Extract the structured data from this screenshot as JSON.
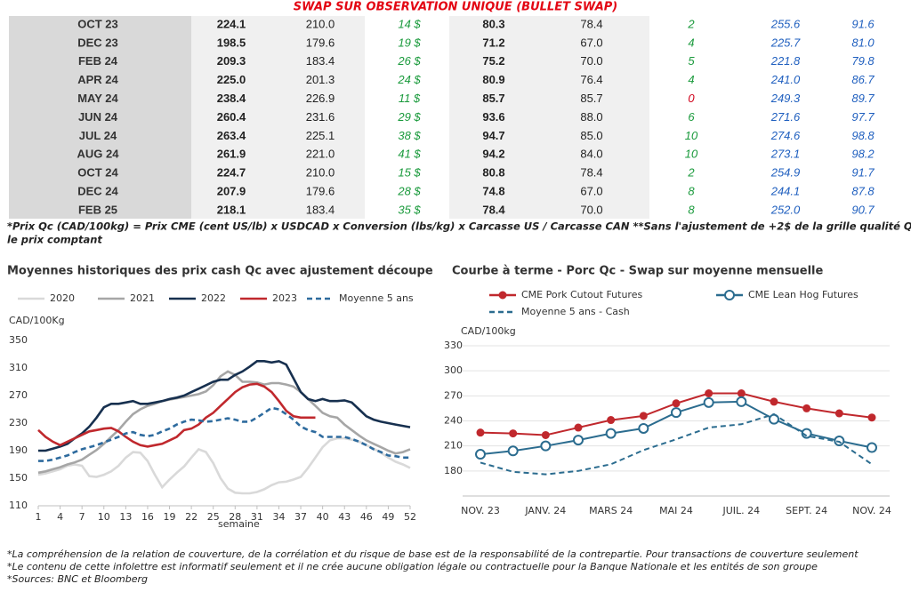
{
  "table": {
    "title": "SWAP SUR OBSERVATION UNIQUE (BULLET SWAP)",
    "rows": [
      [
        "OCT 23",
        "224.1",
        "210.0",
        "14 $",
        "80.3",
        "78.4",
        "2",
        "255.6",
        "91.6"
      ],
      [
        "DEC 23",
        "198.5",
        "179.6",
        "19 $",
        "71.2",
        "67.0",
        "4",
        "225.7",
        "81.0"
      ],
      [
        "FEB 24",
        "209.3",
        "183.4",
        "26 $",
        "75.2",
        "70.0",
        "5",
        "221.8",
        "79.8"
      ],
      [
        "APR 24",
        "225.0",
        "201.3",
        "24 $",
        "80.9",
        "76.4",
        "4",
        "241.0",
        "86.7"
      ],
      [
        "MAY 24",
        "238.4",
        "226.9",
        "11 $",
        "85.7",
        "85.7",
        "0",
        "249.3",
        "89.7"
      ],
      [
        "JUN 24",
        "260.4",
        "231.6",
        "29 $",
        "93.6",
        "88.0",
        "6",
        "271.6",
        "97.7"
      ],
      [
        "JUL 24",
        "263.4",
        "225.1",
        "38 $",
        "94.7",
        "85.0",
        "10",
        "274.6",
        "98.8"
      ],
      [
        "AUG 24",
        "261.9",
        "221.0",
        "41 $",
        "94.2",
        "84.0",
        "10",
        "273.1",
        "98.2"
      ],
      [
        "OCT 24",
        "224.7",
        "210.0",
        "15 $",
        "80.8",
        "78.4",
        "2",
        "254.9",
        "91.7"
      ],
      [
        "DEC 24",
        "207.9",
        "179.6",
        "28 $",
        "74.8",
        "67.0",
        "8",
        "244.1",
        "87.8"
      ],
      [
        "FEB 25",
        "218.1",
        "183.4",
        "35 $",
        "78.4",
        "70.0",
        "8",
        "252.0",
        "90.7"
      ]
    ],
    "note": [
      "*Prix Qc (CAD/100kg) = Prix CME (cent US/lb) x USDCAD x Conversion (lbs/kg) x Carcasse US / Carcasse CAN **Sans l'ajustement de +2$ de la grille qualité Québec pour",
      "le prix comptant"
    ]
  },
  "chart_data": [
    {
      "type": "line",
      "title": "Moyennes historiques des prix cash Qc avec ajustement découpe",
      "ylabel": "CAD/100Kg",
      "xlabel": "semaine",
      "x": [
        1,
        2,
        3,
        4,
        5,
        6,
        7,
        8,
        9,
        10,
        11,
        12,
        13,
        14,
        15,
        16,
        17,
        18,
        19,
        20,
        21,
        22,
        23,
        24,
        25,
        26,
        27,
        28,
        29,
        30,
        31,
        32,
        33,
        34,
        35,
        36,
        37,
        38,
        39,
        40,
        41,
        42,
        43,
        44,
        45,
        46,
        47,
        48,
        49,
        50,
        51,
        52
      ],
      "xlim": [
        1,
        52
      ],
      "xticks": [
        1,
        4,
        7,
        10,
        13,
        16,
        19,
        22,
        25,
        28,
        31,
        34,
        37,
        40,
        43,
        46,
        49,
        52
      ],
      "ylim": [
        110,
        350
      ],
      "yticks": [
        110,
        150,
        190,
        230,
        270,
        310,
        350
      ],
      "grid": false,
      "series": [
        {
          "name": "2020",
          "color": "#d9d9d9",
          "style": "solid",
          "values": [
            155,
            157,
            160,
            163,
            168,
            170,
            168,
            153,
            152,
            155,
            160,
            168,
            180,
            188,
            187,
            175,
            155,
            137,
            148,
            158,
            167,
            180,
            192,
            188,
            172,
            150,
            135,
            129,
            128,
            128,
            130,
            134,
            140,
            144,
            145,
            148,
            152,
            165,
            180,
            195,
            205,
            208,
            208,
            206,
            203,
            198,
            193,
            187,
            180,
            174,
            170,
            165
          ]
        },
        {
          "name": "2021",
          "color": "#a6a6a6",
          "style": "solid",
          "values": [
            158,
            160,
            163,
            166,
            170,
            173,
            177,
            184,
            191,
            200,
            210,
            220,
            232,
            243,
            250,
            255,
            258,
            262,
            264,
            266,
            268,
            270,
            272,
            276,
            285,
            298,
            305,
            300,
            290,
            290,
            289,
            286,
            288,
            288,
            286,
            283,
            275,
            265,
            255,
            245,
            240,
            238,
            228,
            220,
            212,
            205,
            200,
            195,
            190,
            186,
            188,
            192
          ]
        },
        {
          "name": "2022",
          "color": "#17304f",
          "style": "solid",
          "values": [
            190,
            190,
            193,
            196,
            200,
            208,
            215,
            225,
            238,
            253,
            258,
            258,
            260,
            262,
            258,
            258,
            260,
            262,
            265,
            267,
            270,
            275,
            280,
            285,
            290,
            293,
            293,
            300,
            305,
            312,
            320,
            320,
            318,
            320,
            315,
            295,
            275,
            265,
            262,
            265,
            262,
            262,
            263,
            260,
            250,
            240,
            235,
            232,
            230,
            228,
            226,
            224
          ]
        },
        {
          "name": "2023",
          "color": "#c0282d",
          "style": "solid",
          "values": [
            220,
            210,
            203,
            198,
            203,
            208,
            213,
            218,
            220,
            222,
            223,
            218,
            210,
            203,
            198,
            196,
            198,
            200,
            205,
            210,
            220,
            222,
            228,
            238,
            245,
            255,
            265,
            275,
            282,
            286,
            287,
            283,
            275,
            262,
            248,
            240,
            238,
            238,
            238,
            null,
            null,
            null,
            null,
            null,
            null,
            null,
            null,
            null,
            null,
            null,
            null,
            null
          ]
        },
        {
          "name": "Moyenne 5 ans",
          "color": "#2e6b9e",
          "style": "dashed",
          "values": [
            175,
            175,
            177,
            180,
            183,
            188,
            192,
            195,
            198,
            202,
            206,
            210,
            215,
            217,
            213,
            211,
            213,
            218,
            222,
            228,
            232,
            235,
            234,
            232,
            233,
            235,
            237,
            235,
            232,
            232,
            238,
            245,
            252,
            250,
            243,
            235,
            225,
            220,
            217,
            210,
            210,
            210,
            210,
            207,
            203,
            198,
            192,
            188,
            183,
            182,
            180,
            180
          ]
        }
      ]
    },
    {
      "type": "line",
      "title": "Courbe à terme - Porc Qc - Swap sur moyenne mensuelle",
      "ylabel": "CAD/100kg",
      "categories": [
        "NOV. 23",
        null,
        "JANV. 24",
        null,
        "MARS 24",
        null,
        "MAI 24",
        null,
        "JUIL. 24",
        null,
        "SEPT. 24",
        null,
        "NOV. 24"
      ],
      "ylim": [
        150,
        330
      ],
      "yticks": [
        180,
        210,
        240,
        270,
        300,
        330
      ],
      "grid": true,
      "series": [
        {
          "name": "CME Pork Cutout Futures",
          "color": "#c0282d",
          "style": "solid",
          "marker": "filled-circle",
          "values": [
            226,
            225,
            223,
            232,
            241,
            246,
            261,
            273,
            273,
            263,
            255,
            249,
            244
          ]
        },
        {
          "name": "CME Lean Hog Futures",
          "color": "#2b6c8f",
          "style": "solid",
          "marker": "open-circle",
          "values": [
            200,
            204,
            210,
            217,
            225,
            231,
            250,
            262,
            263,
            242,
            225,
            216,
            208
          ]
        },
        {
          "name": "Moyenne 5 ans - Cash",
          "color": "#2b6c8f",
          "style": "dashed",
          "values": [
            190,
            179,
            176,
            180,
            188,
            205,
            218,
            232,
            236,
            248,
            222,
            215,
            188
          ]
        }
      ]
    }
  ],
  "footnotes": [
    "*La compréhension de la relation de couverture, de la corrélation et du risque de base est de la responsabilité de la contrepartie. Pour transactions de couverture seulement",
    "*Le contenu de cette infolettre est informatif seulement et il ne crée aucune obligation légale ou contractuelle pour la Banque Nationale et les entités de son groupe",
    "*Sources: BNC et Bloomberg"
  ]
}
